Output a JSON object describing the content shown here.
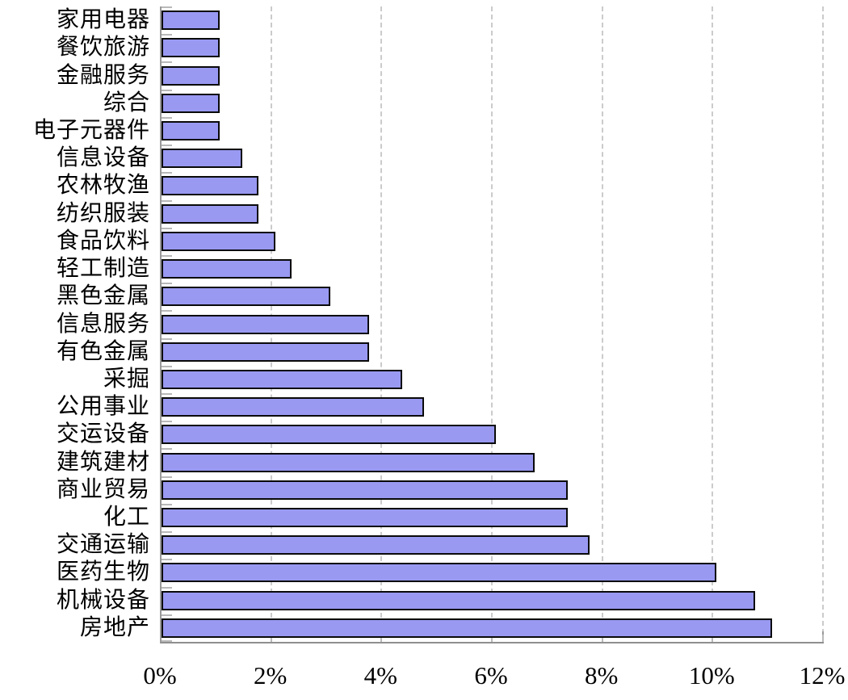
{
  "chart_data": {
    "type": "bar",
    "orientation": "horizontal",
    "title": "",
    "xlabel": "",
    "ylabel": "",
    "legend": "none",
    "grid": "vertical-dashed",
    "xlim": [
      0,
      12
    ],
    "x_tick_values": [
      0,
      2,
      4,
      6,
      8,
      10,
      12
    ],
    "x_tick_labels": [
      "0%",
      "2%",
      "4%",
      "6%",
      "8%",
      "10%",
      "12%"
    ],
    "categories_top_to_bottom": [
      "家用电器",
      "餐饮旅游",
      "金融服务",
      "综合",
      "电子元器件",
      "信息设备",
      "农林牧渔",
      "纺织服装",
      "食品饮料",
      "轻工制造",
      "黑色金属",
      "信息服务",
      "有色金属",
      "采掘",
      "公用事业",
      "交运设备",
      "建筑建材",
      "商业贸易",
      "化工",
      "交通运输",
      "医药生物",
      "机械设备",
      "房地产"
    ],
    "values_percent": [
      1.0,
      1.0,
      1.0,
      1.0,
      1.0,
      1.4,
      1.7,
      1.7,
      2.0,
      2.3,
      3.0,
      3.7,
      3.7,
      4.3,
      4.7,
      6.0,
      6.7,
      7.3,
      7.3,
      7.7,
      10.0,
      10.7,
      11.0
    ],
    "colors": {
      "bar_fill": "#9999F2",
      "bar_border": "#0a0a0a",
      "gridline": "#cbcbcb",
      "axis": "#9a9a9a",
      "tick": "#b9b9b9",
      "text": "#000000",
      "background": "#ffffff"
    }
  }
}
